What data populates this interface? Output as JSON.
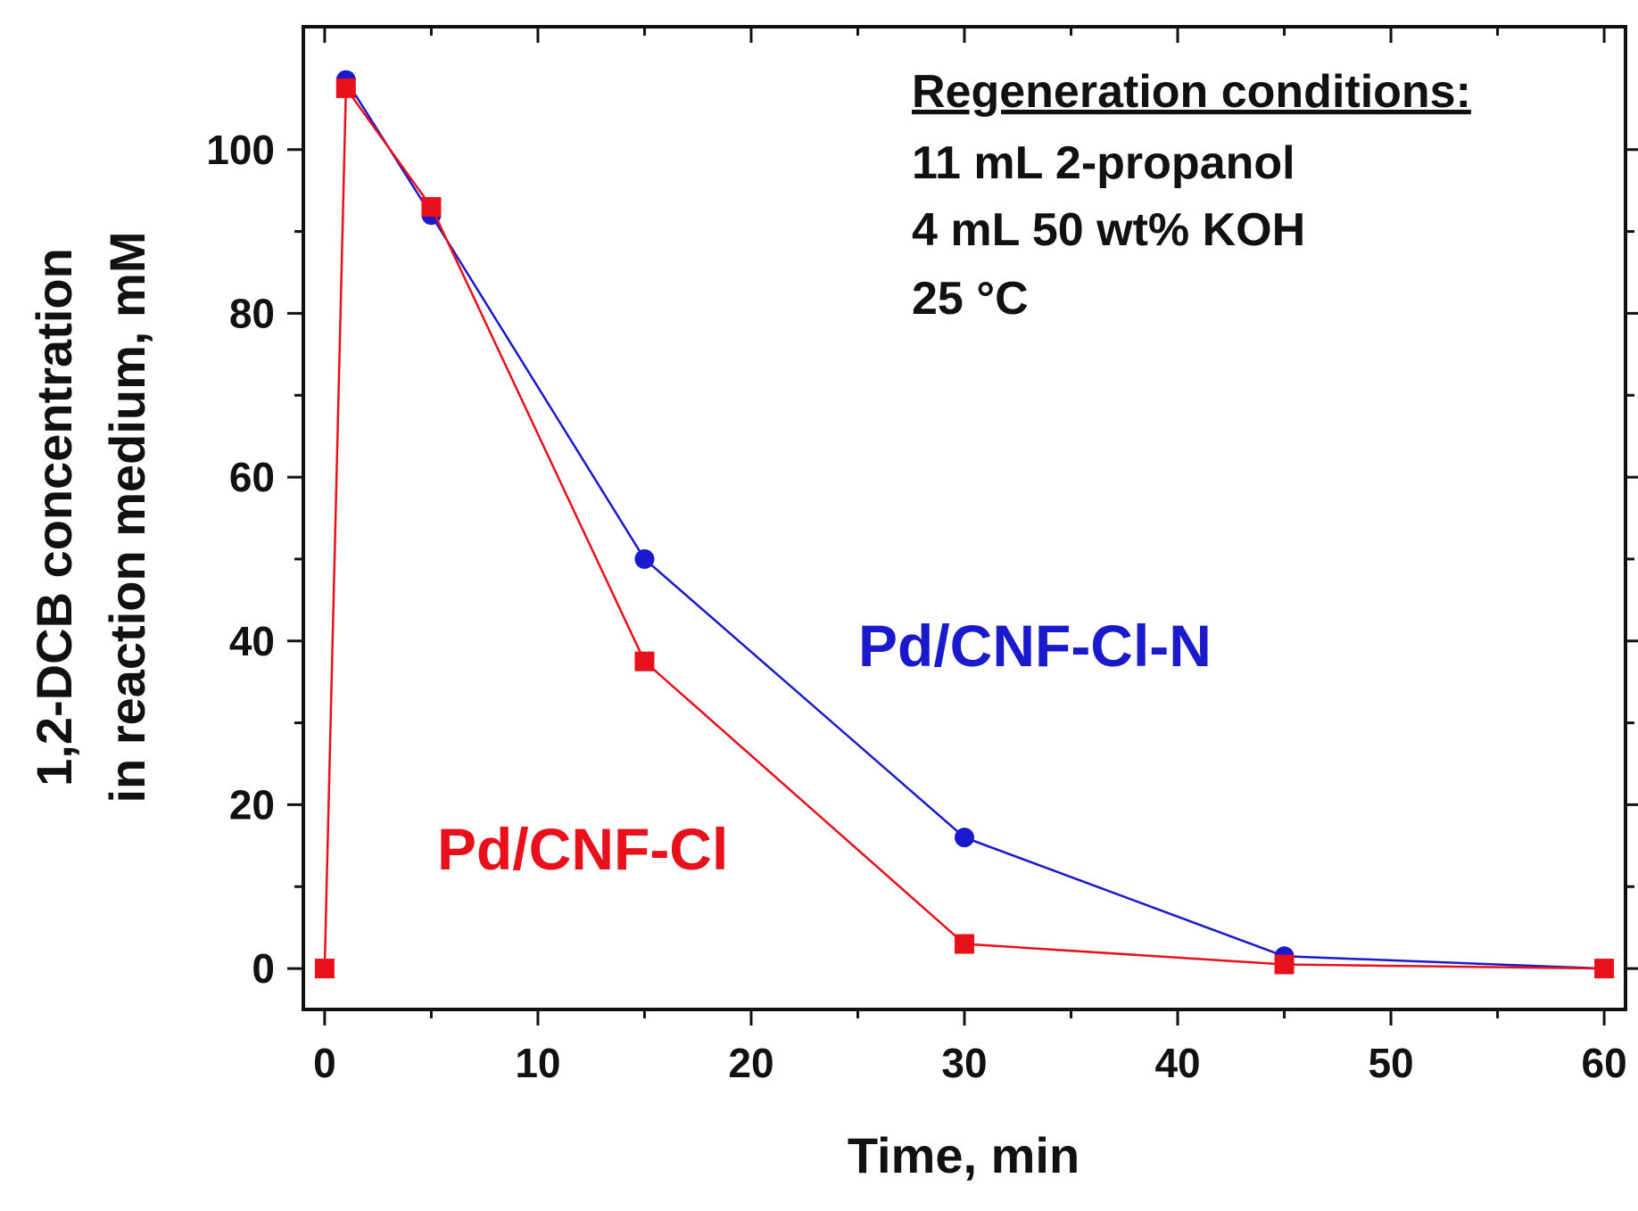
{
  "chart_data": {
    "type": "line",
    "title": "",
    "xlabel": "Time, min",
    "ylabel_line1": "1,2-DCB concentration",
    "ylabel_line2": "in reaction medium, mM",
    "xlim": [
      -1,
      61
    ],
    "ylim": [
      -5,
      115
    ],
    "xticks": [
      0,
      10,
      20,
      30,
      40,
      50,
      60
    ],
    "yticks": [
      0,
      20,
      40,
      60,
      80,
      100
    ],
    "x_minor_step": 5,
    "y_minor_step": 10,
    "grid": false,
    "series": [
      {
        "name": "Pd/CNF-Cl-N",
        "color": "#1a1acc",
        "marker": "circle",
        "x": [
          1,
          5,
          15,
          30,
          45,
          60
        ],
        "y": [
          108.5,
          92,
          50,
          16,
          1.5,
          0
        ]
      },
      {
        "name": "Pd/CNF-Cl",
        "color": "#e8101a",
        "marker": "square",
        "x": [
          0,
          1,
          5,
          15,
          30,
          45,
          60
        ],
        "y": [
          0,
          107.5,
          93,
          37.5,
          3,
          0.5,
          0
        ]
      }
    ],
    "annotation": {
      "heading": "Regeneration conditions:",
      "lines": [
        "11 mL 2-propanol",
        "4 mL 50 wt% KOH",
        "25 °C"
      ]
    }
  }
}
